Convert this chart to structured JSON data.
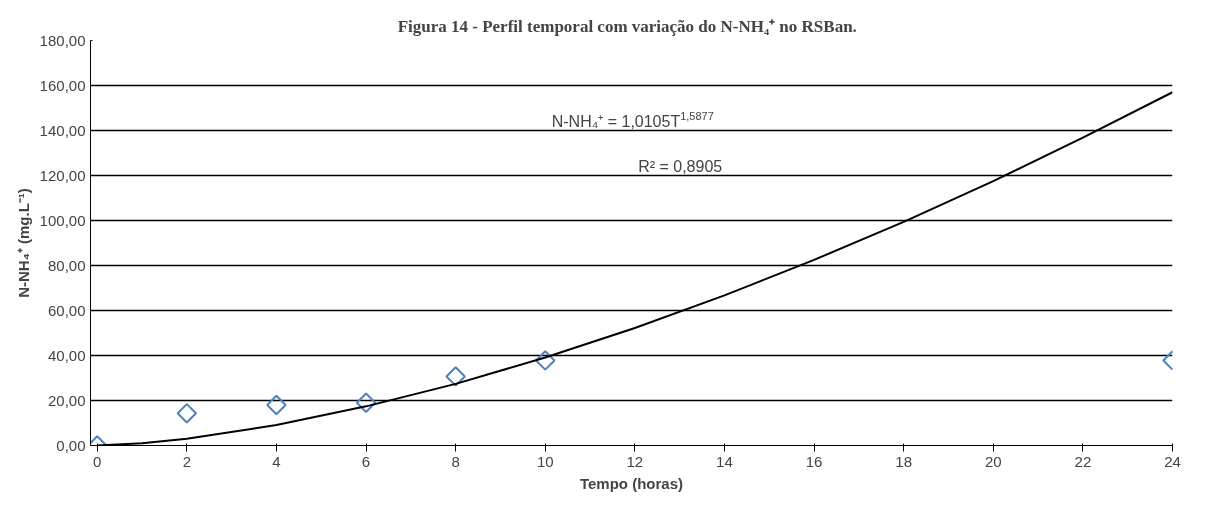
{
  "chart_data": {
    "type": "scatter",
    "title": "Figura 14 - Perfil temporal  com  variação do N-NH₄⁺ no RSBan.",
    "xlabel": "Tempo (horas)",
    "ylabel": "N-NH₄⁺ (mg.L⁻¹)",
    "annotations": [
      "N-NH₄⁺ = 1,0105T$^{1,5877}$",
      "R² = 0,8905"
    ],
    "series": [
      {
        "color": "#4f81bd",
        "marker": "diamond",
        "x": [
          0,
          2,
          4,
          6,
          8,
          10,
          24
        ],
        "values": [
          0,
          14.3,
          18.0,
          19.0,
          30.7,
          37.8,
          37.8
        ]
      },
      {
        "type": "line",
        "color": "#000000",
        "marker": "none",
        "line_style": "solid",
        "x": [
          0,
          1,
          2,
          4,
          6,
          8,
          10,
          12,
          14,
          16,
          18,
          20,
          22,
          24
        ],
        "values": [
          0,
          1.0,
          3.0,
          9.1,
          17.4,
          27.4,
          39.1,
          52.2,
          66.7,
          82.5,
          99.4,
          117.5,
          136.8,
          157.0
        ]
      }
    ],
    "xlim": [
      -0.15,
      24
    ],
    "xticks": [
      0,
      2,
      4,
      6,
      8,
      10,
      12,
      14,
      16,
      18,
      20,
      22,
      24
    ],
    "ylim": [
      0,
      180
    ],
    "yticks": [
      {
        "value": 0,
        "label": "0,00"
      },
      {
        "value": 20,
        "label": "20,00"
      },
      {
        "value": 40,
        "label": "40,00"
      },
      {
        "value": 60,
        "label": "60,00"
      },
      {
        "value": 80,
        "label": "80,00"
      },
      {
        "value": 100,
        "label": "100,00"
      },
      {
        "value": 120,
        "label": "120,00"
      },
      {
        "value": 140,
        "label": "140,00"
      },
      {
        "value": 160,
        "label": "160,00"
      },
      {
        "value": 180,
        "label": "180,00"
      }
    ],
    "grid": "y"
  }
}
